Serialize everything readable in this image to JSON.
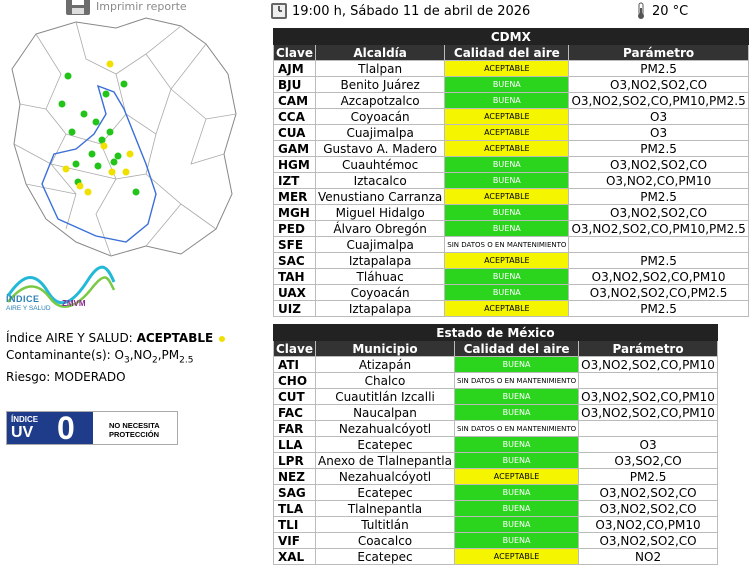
{
  "header": {
    "print_label": "Imprimir reporte",
    "datetime": "19:00 h, Sábado 11 de abril de 2026",
    "temperature": "20 °C"
  },
  "logo": {
    "text": "ÍNDICE",
    "sub": "AIRE Y SALUD",
    "zmvm": "ZMVM"
  },
  "summary": {
    "index_label": "Índice AIRE Y SALUD:",
    "index_value": "ACEPTABLE",
    "pollutants_label": "Contaminante(s):",
    "pollutants": [
      "O",
      "3",
      ",NO",
      "2",
      ",PM",
      "2.5"
    ],
    "risk_label": "Riesgo:",
    "risk_value": "MODERADO"
  },
  "uv": {
    "small": "ÍNDICE",
    "big": "UV",
    "value": "0",
    "message_line1": "NO NECESITA",
    "message_line2": "PROTECCIÓN"
  },
  "colors": {
    "buena": "#2bd51e",
    "aceptable": "#f5f500",
    "header": "#333333"
  },
  "cdmx": {
    "title": "CDMX",
    "headers": [
      "Clave",
      "Alcaldía",
      "Calidad del aire",
      "Parámetro"
    ],
    "rows": [
      {
        "clave": "AJM",
        "name": "Tlalpan",
        "calidad": "ACEPTABLE",
        "param": "PM2.5"
      },
      {
        "clave": "BJU",
        "name": "Benito Juárez",
        "calidad": "BUENA",
        "param": "O3,NO2,SO2,CO"
      },
      {
        "clave": "CAM",
        "name": "Azcapotzalco",
        "calidad": "BUENA",
        "param": "O3,NO2,SO2,CO,PM10,PM2.5"
      },
      {
        "clave": "CCA",
        "name": "Coyoacán",
        "calidad": "ACEPTABLE",
        "param": "O3"
      },
      {
        "clave": "CUA",
        "name": "Cuajimalpa",
        "calidad": "ACEPTABLE",
        "param": "O3"
      },
      {
        "clave": "GAM",
        "name": "Gustavo A. Madero",
        "calidad": "ACEPTABLE",
        "param": "PM2.5"
      },
      {
        "clave": "HGM",
        "name": "Cuauhtémoc",
        "calidad": "BUENA",
        "param": "O3,NO2,SO2,CO"
      },
      {
        "clave": "IZT",
        "name": "Iztacalco",
        "calidad": "BUENA",
        "param": "O3,NO2,CO,PM10"
      },
      {
        "clave": "MER",
        "name": "Venustiano Carranza",
        "calidad": "ACEPTABLE",
        "param": "PM2.5"
      },
      {
        "clave": "MGH",
        "name": "Miguel Hidalgo",
        "calidad": "BUENA",
        "param": "O3,NO2,SO2,CO"
      },
      {
        "clave": "PED",
        "name": "Álvaro Obregón",
        "calidad": "BUENA",
        "param": "O3,NO2,SO2,CO,PM10,PM2.5"
      },
      {
        "clave": "SFE",
        "name": "Cuajimalpa",
        "calidad": "SIN DATOS O EN MANTENIMIENTO",
        "param": ""
      },
      {
        "clave": "SAC",
        "name": "Iztapalapa",
        "calidad": "ACEPTABLE",
        "param": "PM2.5"
      },
      {
        "clave": "TAH",
        "name": "Tláhuac",
        "calidad": "BUENA",
        "param": "O3,NO2,SO2,CO,PM10"
      },
      {
        "clave": "UAX",
        "name": "Coyoacán",
        "calidad": "BUENA",
        "param": "O3,NO2,SO2,CO,PM2.5"
      },
      {
        "clave": "UIZ",
        "name": "Iztapalapa",
        "calidad": "ACEPTABLE",
        "param": "PM2.5"
      }
    ]
  },
  "edomex": {
    "title": "Estado de México",
    "headers": [
      "Clave",
      "Municipio",
      "Calidad del aire",
      "Parámetro"
    ],
    "rows": [
      {
        "clave": "ATI",
        "name": "Atizapán",
        "calidad": "BUENA",
        "param": "O3,NO2,SO2,CO,PM10"
      },
      {
        "clave": "CHO",
        "name": "Chalco",
        "calidad": "SIN DATOS O EN MANTENIMIENTO",
        "param": ""
      },
      {
        "clave": "CUT",
        "name": "Cuautitlán Izcalli",
        "calidad": "BUENA",
        "param": "O3,NO2,SO2,CO,PM10"
      },
      {
        "clave": "FAC",
        "name": "Naucalpan",
        "calidad": "BUENA",
        "param": "O3,NO2,SO2,CO,PM10"
      },
      {
        "clave": "FAR",
        "name": "Nezahualcóyotl",
        "calidad": "SIN DATOS O EN MANTENIMIENTO",
        "param": ""
      },
      {
        "clave": "LLA",
        "name": "Ecatepec",
        "calidad": "BUENA",
        "param": "O3"
      },
      {
        "clave": "LPR",
        "name": "Anexo de Tlalnepantla",
        "calidad": "BUENA",
        "param": "O3,SO2,CO"
      },
      {
        "clave": "NEZ",
        "name": "Nezahualcóyotl",
        "calidad": "ACEPTABLE",
        "param": "PM2.5"
      },
      {
        "clave": "SAG",
        "name": "Ecatepec",
        "calidad": "BUENA",
        "param": "O3,NO2,SO2,CO"
      },
      {
        "clave": "TLA",
        "name": "Tlalnepantla",
        "calidad": "BUENA",
        "param": "O3,NO2,SO2,CO"
      },
      {
        "clave": "TLI",
        "name": "Tultitlán",
        "calidad": "BUENA",
        "param": "O3,NO2,CO,PM10"
      },
      {
        "clave": "VIF",
        "name": "Coacalco",
        "calidad": "BUENA",
        "param": "O3,NO2,SO2,CO"
      },
      {
        "clave": "XAL",
        "name": "Ecatepec",
        "calidad": "ACEPTABLE",
        "param": "NO2"
      }
    ]
  }
}
